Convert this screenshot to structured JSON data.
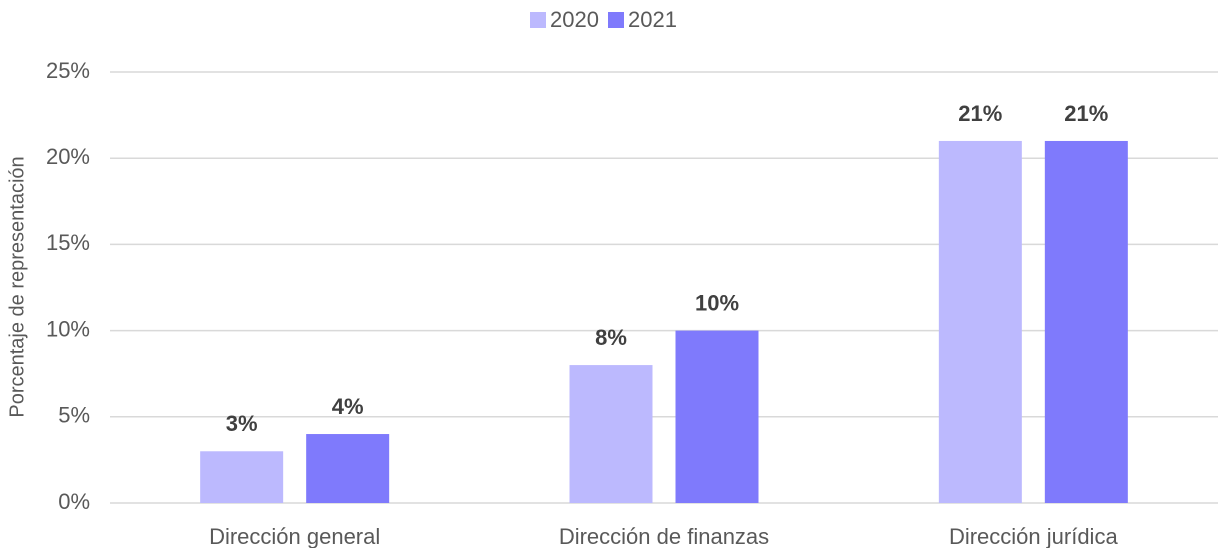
{
  "chart_data": {
    "type": "bar",
    "ylabel": "Porcentaje de representación",
    "categories": [
      "Dirección general",
      "Dirección de finanzas",
      "Dirección jurídica"
    ],
    "series": [
      {
        "name": "2020",
        "color": "#bcb9fe",
        "values": [
          3,
          8,
          21
        ],
        "value_labels": [
          "3%",
          "8%",
          "21%"
        ]
      },
      {
        "name": "2021",
        "color": "#7f7afc",
        "values": [
          4,
          10,
          21
        ],
        "value_labels": [
          "4%",
          "10%",
          "21%"
        ]
      }
    ],
    "ylim": [
      0,
      25
    ],
    "yticks": [
      {
        "value": 0,
        "label": "0%"
      },
      {
        "value": 5,
        "label": "5%"
      },
      {
        "value": 10,
        "label": "10%"
      },
      {
        "value": 15,
        "label": "15%"
      },
      {
        "value": 20,
        "label": "20%"
      },
      {
        "value": 25,
        "label": "25%"
      }
    ],
    "grid": true,
    "legend": "top"
  }
}
